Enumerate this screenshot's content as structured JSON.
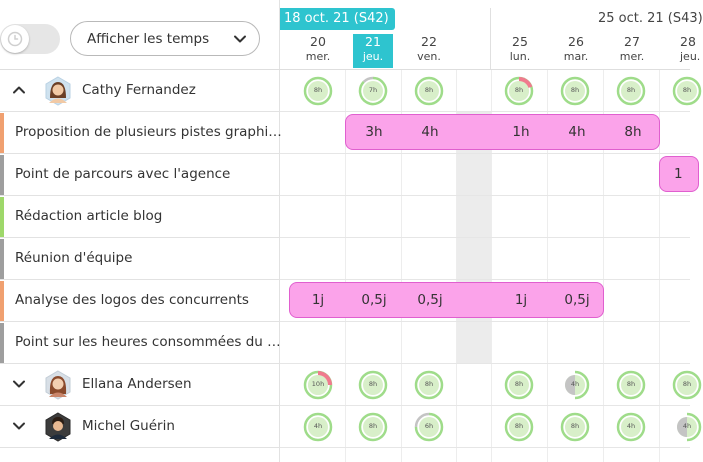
{
  "toolbar": {
    "toggle_icon": "clock-icon",
    "dropdown_label": "Afficher les temps",
    "dropdown_icon": "chevron-down-icon"
  },
  "header": {
    "current_week": "18 oct. 21 (S42)",
    "next_week": "25 oct. 21 (S43)",
    "days": [
      {
        "num": "20",
        "wd": "mer.",
        "today": false
      },
      {
        "num": "21",
        "wd": "jeu.",
        "today": true
      },
      {
        "num": "22",
        "wd": "ven.",
        "today": false
      },
      {
        "num": "25",
        "wd": "lun.",
        "today": false
      },
      {
        "num": "26",
        "wd": "mar.",
        "today": false
      },
      {
        "num": "27",
        "wd": "mer.",
        "today": false
      },
      {
        "num": "28",
        "wd": "jeu.",
        "today": false
      }
    ]
  },
  "people": [
    {
      "name": "Cathy Fernandez",
      "expanded": true,
      "load": [
        {
          "text": "8h",
          "status": "full"
        },
        {
          "text": "7h",
          "status": "partial",
          "fraction": 0.875
        },
        {
          "text": "8h",
          "status": "full"
        },
        {
          "text": "8h",
          "status": "over",
          "fraction": 0.2
        },
        {
          "text": "8h",
          "status": "full"
        },
        {
          "text": "8h",
          "status": "full"
        },
        {
          "text": "8h",
          "status": "full"
        }
      ]
    },
    {
      "name": "Ellana Andersen",
      "expanded": false,
      "load": [
        {
          "text": "10h",
          "status": "over",
          "fraction": 0.25
        },
        {
          "text": "8h",
          "status": "full"
        },
        {
          "text": "8h",
          "status": "full"
        },
        {
          "text": "8h",
          "status": "full"
        },
        {
          "text": "4h",
          "status": "partial",
          "fraction": 0.5
        },
        {
          "text": "8h",
          "status": "full"
        },
        {
          "text": "8h",
          "status": "full"
        }
      ]
    },
    {
      "name": "Michel Guérin",
      "expanded": false,
      "load": [
        {
          "text": "4h",
          "status": "full"
        },
        {
          "text": "8h",
          "status": "full"
        },
        {
          "text": "6h",
          "status": "partial",
          "fraction": 0.75
        },
        {
          "text": "8h",
          "status": "full"
        },
        {
          "text": "8h",
          "status": "full"
        },
        {
          "text": "4h",
          "status": "full"
        },
        {
          "text": "4h",
          "status": "partial",
          "fraction": 0.5
        }
      ]
    }
  ],
  "tasks": [
    {
      "label": "Proposition de plusieurs pistes graphi…",
      "color": "#f0a070",
      "values": [
        "3h",
        "4h",
        "1h",
        "4h",
        "8h"
      ]
    },
    {
      "label": "Point de parcours avec l'agence",
      "color": "#9e9e9e",
      "values": [
        "1"
      ]
    },
    {
      "label": "Rédaction article blog",
      "color": "#9ed86a",
      "values": []
    },
    {
      "label": "Réunion d'équipe",
      "color": "#9e9e9e",
      "values": []
    },
    {
      "label": "Analyse des logos des concurrents",
      "color": "#f0a070",
      "values": [
        "1j",
        "0,5j",
        "0,5j",
        "1j",
        "0,5j"
      ]
    },
    {
      "label": "Point sur les heures consommées du …",
      "color": "#9e9e9e",
      "values": []
    }
  ],
  "colors": {
    "accent": "#2ec4cf",
    "pill_fill": "#fba3ea",
    "pill_border": "#e05fcf",
    "ring_ok": "#9fdc8a",
    "ring_inner": "#d8efc9",
    "ring_over": "#f07a8e",
    "ring_under": "#c4c4c4"
  }
}
